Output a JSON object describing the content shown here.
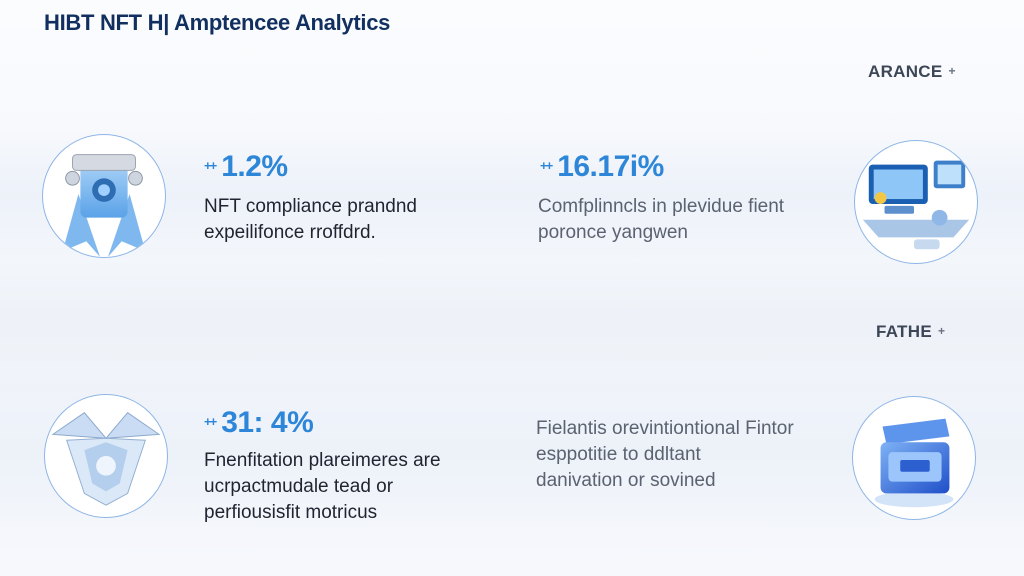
{
  "header": {
    "title": "HIBT NFT H| Amptencee Analytics"
  },
  "sections": {
    "top_label": "ARANCE",
    "bottom_label": "FATHE",
    "arrow_glyph": "+"
  },
  "cards": [
    {
      "icon": "ribbon-badge-icon",
      "marker": "++",
      "stat": "1.2%",
      "line1": "NFT compliance prandnd",
      "line2": "expeilifonce rroffdrd."
    },
    {
      "icon": "computer-desk-icon",
      "marker": "++",
      "stat": "16.17i%",
      "line1": "Comfplinncls in plevidue fient",
      "line2": "poronce yangwen"
    },
    {
      "icon": "crystal-box-icon",
      "marker": "++",
      "stat": "31: 4%",
      "line1": "Fnenfitation plareimeres are",
      "line2": "ucrpactmudale tead or",
      "line3": "perfiousisfit motricus"
    },
    {
      "icon": "blue-chest-icon",
      "line1": "Fielantis orevintiontional Fintor",
      "line2": "esppotitie to ddltant",
      "line3": "danivation or sovined"
    }
  ],
  "colors": {
    "title": "#12305f",
    "stat": "#2d86d8",
    "circle_border": "#8fb6e6"
  }
}
